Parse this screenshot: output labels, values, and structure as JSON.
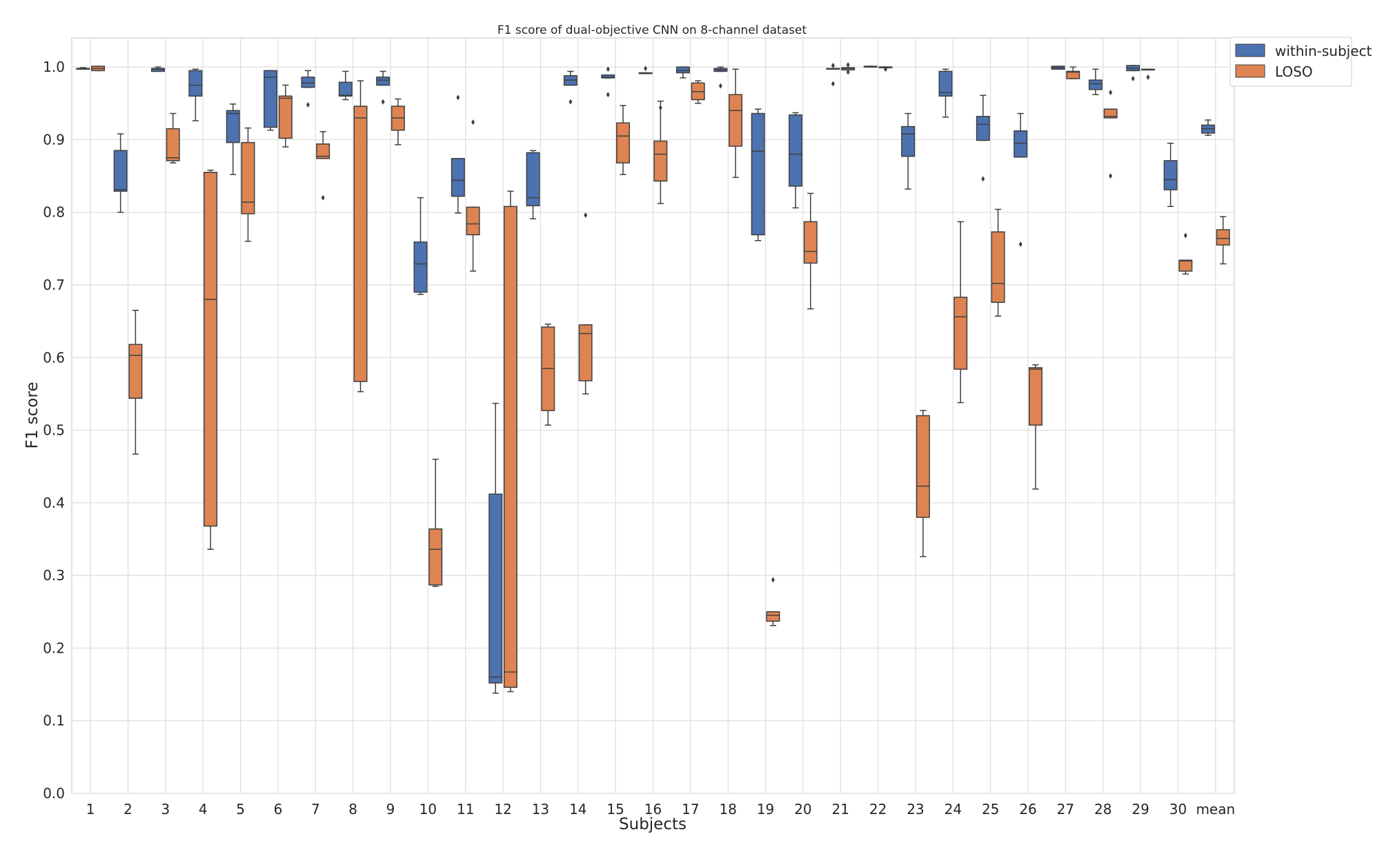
{
  "chart_data": {
    "type": "box",
    "title": "F1 score of dual-objective CNN on 8-channel dataset",
    "xlabel": "Subjects",
    "ylabel": "F1 score",
    "ylim": [
      0,
      1.04
    ],
    "yticks": [
      0.0,
      0.1,
      0.2,
      0.3,
      0.4,
      0.5,
      0.6,
      0.7,
      0.8,
      0.9,
      1.0
    ],
    "ytick_labels": [
      "0.0",
      "0.1",
      "0.2",
      "0.3",
      "0.4",
      "0.5",
      "0.6",
      "0.7",
      "0.8",
      "0.9",
      "1.0"
    ],
    "grid": true,
    "legend_position": "top-right outside",
    "categories": [
      "1",
      "2",
      "3",
      "4",
      "5",
      "6",
      "7",
      "8",
      "9",
      "10",
      "11",
      "12",
      "13",
      "14",
      "15",
      "16",
      "17",
      "18",
      "19",
      "20",
      "21",
      "22",
      "23",
      "24",
      "25",
      "26",
      "27",
      "28",
      "29",
      "30",
      "mean"
    ],
    "series": [
      {
        "name": "within-subject",
        "color": "#4c72b0",
        "boxes": [
          {
            "whislo": 0.997,
            "q1": 0.997,
            "med": 0.998,
            "q3": 0.998,
            "whishi": 0.999,
            "fliers": []
          },
          {
            "whislo": 0.8,
            "q1": 0.829,
            "med": 0.831,
            "q3": 0.885,
            "whishi": 0.908,
            "fliers": []
          },
          {
            "whislo": 0.994,
            "q1": 0.994,
            "med": 0.997,
            "q3": 0.998,
            "whishi": 1.0,
            "fliers": []
          },
          {
            "whislo": 0.926,
            "q1": 0.96,
            "med": 0.975,
            "q3": 0.995,
            "whishi": 0.997,
            "fliers": []
          },
          {
            "whislo": 0.852,
            "q1": 0.896,
            "med": 0.936,
            "q3": 0.94,
            "whishi": 0.949,
            "fliers": []
          },
          {
            "whislo": 0.913,
            "q1": 0.917,
            "med": 0.986,
            "q3": 0.995,
            "whishi": 0.995,
            "fliers": []
          },
          {
            "whislo": 0.972,
            "q1": 0.972,
            "med": 0.978,
            "q3": 0.986,
            "whishi": 0.995,
            "fliers": [
              0.948
            ]
          },
          {
            "whislo": 0.955,
            "q1": 0.96,
            "med": 0.961,
            "q3": 0.979,
            "whishi": 0.994,
            "fliers": []
          },
          {
            "whislo": 0.975,
            "q1": 0.975,
            "med": 0.982,
            "q3": 0.986,
            "whishi": 0.994,
            "fliers": [
              0.952
            ]
          },
          {
            "whislo": 0.687,
            "q1": 0.69,
            "med": 0.729,
            "q3": 0.759,
            "whishi": 0.82,
            "fliers": []
          },
          {
            "whislo": 0.799,
            "q1": 0.822,
            "med": 0.844,
            "q3": 0.874,
            "whishi": 0.874,
            "fliers": [
              0.958
            ]
          },
          {
            "whislo": 0.138,
            "q1": 0.152,
            "med": 0.16,
            "q3": 0.412,
            "whishi": 0.537,
            "fliers": []
          },
          {
            "whislo": 0.791,
            "q1": 0.809,
            "med": 0.82,
            "q3": 0.882,
            "whishi": 0.885,
            "fliers": []
          },
          {
            "whislo": 0.975,
            "q1": 0.975,
            "med": 0.982,
            "q3": 0.988,
            "whishi": 0.994,
            "fliers": [
              0.952
            ]
          },
          {
            "whislo": 0.985,
            "q1": 0.985,
            "med": 0.986,
            "q3": 0.989,
            "whishi": 0.989,
            "fliers": [
              0.997,
              0.962
            ]
          },
          {
            "whislo": 0.991,
            "q1": 0.991,
            "med": 0.991,
            "q3": 0.992,
            "whishi": 0.992,
            "fliers": [
              0.998
            ]
          },
          {
            "whislo": 0.985,
            "q1": 0.992,
            "med": 0.995,
            "q3": 1.0,
            "whishi": 1.0,
            "fliers": []
          },
          {
            "whislo": 0.994,
            "q1": 0.994,
            "med": 0.996,
            "q3": 0.998,
            "whishi": 1.0,
            "fliers": [
              0.974
            ]
          },
          {
            "whislo": 0.761,
            "q1": 0.769,
            "med": 0.884,
            "q3": 0.936,
            "whishi": 0.942,
            "fliers": []
          },
          {
            "whislo": 0.806,
            "q1": 0.836,
            "med": 0.88,
            "q3": 0.934,
            "whishi": 0.937,
            "fliers": []
          },
          {
            "whislo": 0.997,
            "q1": 0.997,
            "med": 0.998,
            "q3": 0.998,
            "whishi": 0.998,
            "fliers": [
              1.002,
              0.977
            ]
          },
          {
            "whislo": 1.0,
            "q1": 1.0,
            "med": 1.0,
            "q3": 1.001,
            "whishi": 1.001,
            "fliers": []
          },
          {
            "whislo": 0.832,
            "q1": 0.877,
            "med": 0.908,
            "q3": 0.918,
            "whishi": 0.936,
            "fliers": []
          },
          {
            "whislo": 0.931,
            "q1": 0.96,
            "med": 0.965,
            "q3": 0.994,
            "whishi": 0.997,
            "fliers": []
          },
          {
            "whislo": 0.899,
            "q1": 0.899,
            "med": 0.921,
            "q3": 0.932,
            "whishi": 0.961,
            "fliers": [
              0.846
            ]
          },
          {
            "whislo": 0.876,
            "q1": 0.876,
            "med": 0.895,
            "q3": 0.912,
            "whishi": 0.936,
            "fliers": [
              0.756
            ]
          },
          {
            "whislo": 0.997,
            "q1": 0.997,
            "med": 0.999,
            "q3": 1.001,
            "whishi": 1.001,
            "fliers": []
          },
          {
            "whislo": 0.962,
            "q1": 0.969,
            "med": 0.977,
            "q3": 0.982,
            "whishi": 0.997,
            "fliers": []
          },
          {
            "whislo": 0.995,
            "q1": 0.995,
            "med": 0.998,
            "q3": 1.002,
            "whishi": 1.002,
            "fliers": [
              0.984
            ]
          },
          {
            "whislo": 0.808,
            "q1": 0.831,
            "med": 0.845,
            "q3": 0.871,
            "whishi": 0.895,
            "fliers": []
          },
          {
            "whislo": 0.906,
            "q1": 0.909,
            "med": 0.915,
            "q3": 0.92,
            "whishi": 0.927,
            "fliers": []
          }
        ]
      },
      {
        "name": "LOSO",
        "color": "#dd8452",
        "boxes": [
          {
            "whislo": 0.995,
            "q1": 0.995,
            "med": 0.998,
            "q3": 1.001,
            "whishi": 1.001,
            "fliers": []
          },
          {
            "whislo": 0.467,
            "q1": 0.544,
            "med": 0.603,
            "q3": 0.618,
            "whishi": 0.665,
            "fliers": []
          },
          {
            "whislo": 0.868,
            "q1": 0.871,
            "med": 0.875,
            "q3": 0.915,
            "whishi": 0.936,
            "fliers": []
          },
          {
            "whislo": 0.336,
            "q1": 0.368,
            "med": 0.68,
            "q3": 0.855,
            "whishi": 0.858,
            "fliers": []
          },
          {
            "whislo": 0.76,
            "q1": 0.798,
            "med": 0.814,
            "q3": 0.896,
            "whishi": 0.916,
            "fliers": []
          },
          {
            "whislo": 0.89,
            "q1": 0.902,
            "med": 0.957,
            "q3": 0.96,
            "whishi": 0.975,
            "fliers": []
          },
          {
            "whislo": 0.874,
            "q1": 0.874,
            "med": 0.877,
            "q3": 0.894,
            "whishi": 0.911,
            "fliers": [
              0.82
            ]
          },
          {
            "whislo": 0.553,
            "q1": 0.567,
            "med": 0.93,
            "q3": 0.946,
            "whishi": 0.981,
            "fliers": []
          },
          {
            "whislo": 0.893,
            "q1": 0.913,
            "med": 0.93,
            "q3": 0.946,
            "whishi": 0.956,
            "fliers": []
          },
          {
            "whislo": 0.285,
            "q1": 0.287,
            "med": 0.336,
            "q3": 0.364,
            "whishi": 0.46,
            "fliers": []
          },
          {
            "whislo": 0.719,
            "q1": 0.769,
            "med": 0.784,
            "q3": 0.807,
            "whishi": 0.807,
            "fliers": [
              0.924
            ]
          },
          {
            "whislo": 0.14,
            "q1": 0.146,
            "med": 0.167,
            "q3": 0.808,
            "whishi": 0.829,
            "fliers": []
          },
          {
            "whislo": 0.507,
            "q1": 0.527,
            "med": 0.585,
            "q3": 0.642,
            "whishi": 0.646,
            "fliers": []
          },
          {
            "whislo": 0.55,
            "q1": 0.568,
            "med": 0.633,
            "q3": 0.645,
            "whishi": 0.645,
            "fliers": [
              0.796
            ]
          },
          {
            "whislo": 0.852,
            "q1": 0.868,
            "med": 0.905,
            "q3": 0.923,
            "whishi": 0.947,
            "fliers": []
          },
          {
            "whislo": 0.812,
            "q1": 0.843,
            "med": 0.88,
            "q3": 0.898,
            "whishi": 0.953,
            "fliers": [
              0.944
            ]
          },
          {
            "whislo": 0.95,
            "q1": 0.955,
            "med": 0.966,
            "q3": 0.978,
            "whishi": 0.981,
            "fliers": []
          },
          {
            "whislo": 0.848,
            "q1": 0.891,
            "med": 0.94,
            "q3": 0.962,
            "whishi": 0.997,
            "fliers": []
          },
          {
            "whislo": 0.231,
            "q1": 0.237,
            "med": 0.245,
            "q3": 0.25,
            "whishi": 0.25,
            "fliers": [
              0.294
            ]
          },
          {
            "whislo": 0.667,
            "q1": 0.73,
            "med": 0.746,
            "q3": 0.787,
            "whishi": 0.826,
            "fliers": []
          },
          {
            "whislo": 0.996,
            "q1": 0.996,
            "med": 0.998,
            "q3": 0.999,
            "whishi": 0.999,
            "fliers": [
              1.003,
              0.993
            ]
          },
          {
            "whislo": 0.999,
            "q1": 0.999,
            "med": 1.0,
            "q3": 1.0,
            "whishi": 1.0,
            "fliers": [
              0.997
            ]
          },
          {
            "whislo": 0.326,
            "q1": 0.38,
            "med": 0.423,
            "q3": 0.52,
            "whishi": 0.527,
            "fliers": []
          },
          {
            "whislo": 0.538,
            "q1": 0.584,
            "med": 0.656,
            "q3": 0.683,
            "whishi": 0.787,
            "fliers": []
          },
          {
            "whislo": 0.657,
            "q1": 0.676,
            "med": 0.702,
            "q3": 0.773,
            "whishi": 0.804,
            "fliers": []
          },
          {
            "whislo": 0.419,
            "q1": 0.507,
            "med": 0.584,
            "q3": 0.586,
            "whishi": 0.59,
            "fliers": []
          },
          {
            "whislo": 0.984,
            "q1": 0.984,
            "med": 0.993,
            "q3": 0.994,
            "whishi": 1.0,
            "fliers": []
          },
          {
            "whislo": 0.93,
            "q1": 0.93,
            "med": 0.932,
            "q3": 0.942,
            "whishi": 0.942,
            "fliers": [
              0.965,
              0.85
            ]
          },
          {
            "whislo": 0.996,
            "q1": 0.996,
            "med": 0.996,
            "q3": 0.997,
            "whishi": 0.997,
            "fliers": [
              0.986
            ]
          },
          {
            "whislo": 0.715,
            "q1": 0.719,
            "med": 0.733,
            "q3": 0.734,
            "whishi": 0.734,
            "fliers": [
              0.768
            ]
          },
          {
            "whislo": 0.729,
            "q1": 0.755,
            "med": 0.764,
            "q3": 0.776,
            "whishi": 0.794,
            "fliers": []
          }
        ]
      }
    ]
  }
}
